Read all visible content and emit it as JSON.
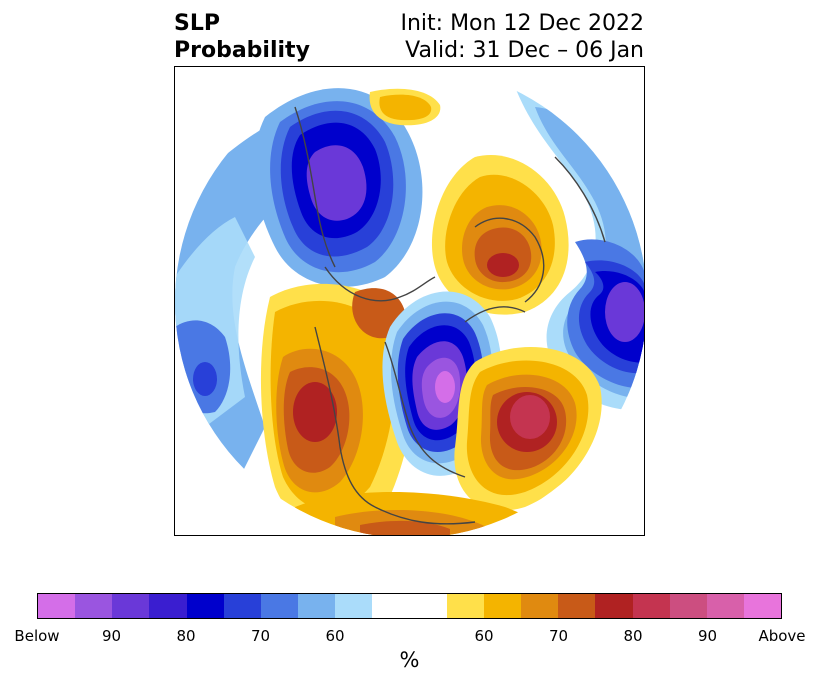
{
  "title": {
    "left_line1": "SLP",
    "left_line2": "Probability",
    "right_line1": "Init: Mon 12 Dec 2022",
    "right_line2": "Valid: 31 Dec – 06 Jan"
  },
  "colorbar": {
    "unit": "%",
    "colors": [
      "#d46ee8",
      "#9a55e0",
      "#6a38d8",
      "#3a1ed0",
      "#0000cc",
      "#2840d8",
      "#4a78e4",
      "#78b2ee",
      "#aadcfa",
      "#ffffff",
      "#ffffff",
      "#ffe04a",
      "#f4b400",
      "#e08a10",
      "#c85a18",
      "#b02222",
      "#c43450",
      "#cc4e80",
      "#d860aa",
      "#e874dc"
    ],
    "ticks": [
      {
        "label": "Below",
        "index": 0
      },
      {
        "label": "90",
        "index": 2
      },
      {
        "label": "80",
        "index": 4
      },
      {
        "label": "70",
        "index": 6
      },
      {
        "label": "60",
        "index": 8
      },
      {
        "label": "60",
        "index": 12
      },
      {
        "label": "70",
        "index": 14
      },
      {
        "label": "80",
        "index": 16
      },
      {
        "label": "90",
        "index": 18
      },
      {
        "label": "Above",
        "index": 20
      }
    ]
  },
  "map": {
    "projection": "north-polar-stereographic",
    "regions": [
      {
        "name": "below-normal-north-pacific-alaska",
        "category": "below",
        "level": 80
      },
      {
        "name": "below-normal-hudson-bay-canada",
        "category": "below",
        "level": 90
      },
      {
        "name": "below-normal-siberia",
        "category": "below",
        "level": 80
      },
      {
        "name": "below-normal-central-pacific",
        "category": "below",
        "level": 70
      },
      {
        "name": "above-normal-arctic-greenland",
        "category": "above",
        "level": 80
      },
      {
        "name": "above-normal-western-north-america",
        "category": "above",
        "level": 80
      },
      {
        "name": "above-normal-north-atlantic",
        "category": "above",
        "level": 85
      },
      {
        "name": "above-normal-beaufort-sea",
        "category": "above",
        "level": 60
      },
      {
        "name": "above-normal-gulf-of-mexico",
        "category": "above",
        "level": 70
      }
    ]
  }
}
